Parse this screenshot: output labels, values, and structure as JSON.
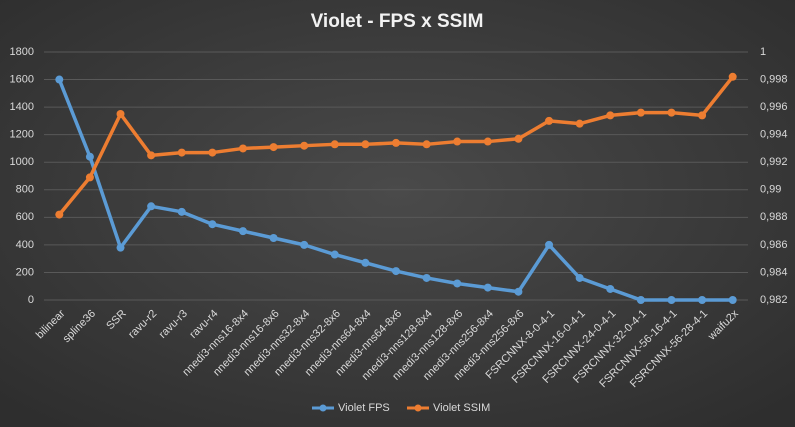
{
  "chart_data": {
    "type": "line",
    "title": "Violet  - FPS x SSIM",
    "categories": [
      "bilinear",
      "spline36",
      "SSR",
      "ravu-r2",
      "ravu-r3",
      "ravu-r4",
      "nnedi3-nns16-8x4",
      "nnedi3-nns16-8x6",
      "nnedi3-nns32-8x4",
      "nnedi3-nns32-8x6",
      "nnedi3-nns64-8x4",
      "nnedi3-nns64-8x6",
      "nnedi3-nns128-8x4",
      "nnedi3-nns128-8x6",
      "nnedi3-nns256-8x4",
      "nnedi3-nns256-8x6",
      "FSRCNNX-8-0-4-1",
      "FSRCNNX-16-0-4-1",
      "FSRCNNX-24-0-4-1",
      "FSRCNNX-32-0-4-1",
      "FSRCNNX-56-16-4-1",
      "FSRCNNX-56-28-4-1",
      "waifu2x"
    ],
    "series": [
      {
        "name": "Violet FPS",
        "color": "#5b9bd5",
        "values": [
          1600,
          1040,
          380,
          680,
          640,
          550,
          500,
          450,
          400,
          330,
          270,
          210,
          160,
          120,
          90,
          60,
          400,
          160,
          80,
          0,
          0,
          0,
          0
        ]
      },
      {
        "name": "Violet SSIM",
        "color": "#ed7d31",
        "axis": "y2",
        "values": [
          0.9882,
          0.9909,
          0.9955,
          0.9925,
          0.9927,
          0.9927,
          0.993,
          0.9931,
          0.9932,
          0.9933,
          0.9933,
          0.9934,
          0.9933,
          0.9935,
          0.9935,
          0.9937,
          0.995,
          0.9948,
          0.9954,
          0.9956,
          0.9956,
          0.9954,
          0.9982
        ]
      }
    ],
    "ylim": [
      0,
      1800
    ],
    "yticks": [
      0,
      200,
      400,
      600,
      800,
      1000,
      1200,
      1400,
      1600,
      1800
    ],
    "y2lim": [
      0.982,
      1
    ],
    "y2ticks": [
      {
        "value": 0.982,
        "label": "0,982"
      },
      {
        "value": 0.984,
        "label": "0,984"
      },
      {
        "value": 0.986,
        "label": "0,986"
      },
      {
        "value": 0.988,
        "label": "0,988"
      },
      {
        "value": 0.99,
        "label": "0,99"
      },
      {
        "value": 0.992,
        "label": "0,992"
      },
      {
        "value": 0.994,
        "label": "0,994"
      },
      {
        "value": 0.996,
        "label": "0,996"
      },
      {
        "value": 0.998,
        "label": "0,998"
      },
      1
    ],
    "grid": true,
    "legend": "bottom"
  }
}
